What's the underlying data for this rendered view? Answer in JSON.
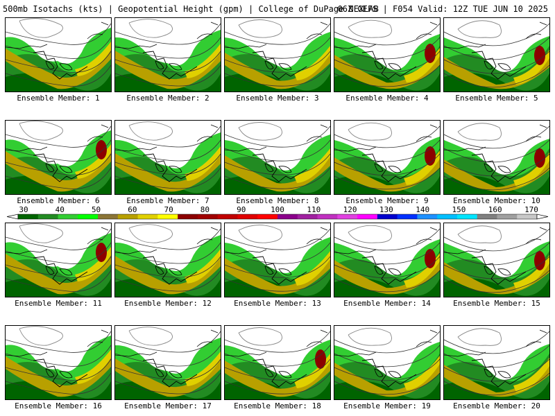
{
  "header": {
    "title_left": "500mb Isotachs (kts) | Geopotential Height (gpm) | College of DuPage NEXLAB",
    "title_right": "06Z GEFS | F054 Valid: 12Z TUE JUN 10 2025"
  },
  "colorbar": {
    "labels": [
      "30",
      "40",
      "50",
      "60",
      "70",
      "80",
      "90",
      "100",
      "110",
      "120",
      "130",
      "140",
      "150",
      "160",
      "170"
    ],
    "colors": [
      "#006400",
      "#228b22",
      "#32cd32",
      "#00ff00",
      "#8b7536",
      "#b8a000",
      "#e0d000",
      "#ffff00",
      "#8b0000",
      "#a00000",
      "#c00000",
      "#e00000",
      "#ff0000",
      "#8b008b",
      "#a020a0",
      "#c030c0",
      "#e040e0",
      "#ff00ff",
      "#0000cd",
      "#0030ff",
      "#1e90ff",
      "#00bfff",
      "#00e5ff",
      "#808080",
      "#a0a0a0",
      "#c8c8c8"
    ]
  },
  "members": [
    {
      "label": "Ensemble Member: 1",
      "jet_max": 60
    },
    {
      "label": "Ensemble Member: 2",
      "jet_max": 55
    },
    {
      "label": "Ensemble Member: 3",
      "jet_max": 58
    },
    {
      "label": "Ensemble Member: 4",
      "jet_max": 75
    },
    {
      "label": "Ensemble Member: 5",
      "jet_max": 78
    },
    {
      "label": "Ensemble Member: 6",
      "jet_max": 75
    },
    {
      "label": "Ensemble Member: 7",
      "jet_max": 62
    },
    {
      "label": "Ensemble Member: 8",
      "jet_max": 62
    },
    {
      "label": "Ensemble Member: 9",
      "jet_max": 75
    },
    {
      "label": "Ensemble Member: 10",
      "jet_max": 75
    },
    {
      "label": "Ensemble Member: 11",
      "jet_max": 78
    },
    {
      "label": "Ensemble Member: 12",
      "jet_max": 65
    },
    {
      "label": "Ensemble Member: 13",
      "jet_max": 65
    },
    {
      "label": "Ensemble Member: 14",
      "jet_max": 75
    },
    {
      "label": "Ensemble Member: 15",
      "jet_max": 75
    },
    {
      "label": "Ensemble Member: 16",
      "jet_max": 72
    },
    {
      "label": "Ensemble Member: 17",
      "jet_max": 55
    },
    {
      "label": "Ensemble Member: 18",
      "jet_max": 78
    },
    {
      "label": "Ensemble Member: 19",
      "jet_max": 72
    },
    {
      "label": "Ensemble Member: 20",
      "jet_max": 58
    }
  ]
}
